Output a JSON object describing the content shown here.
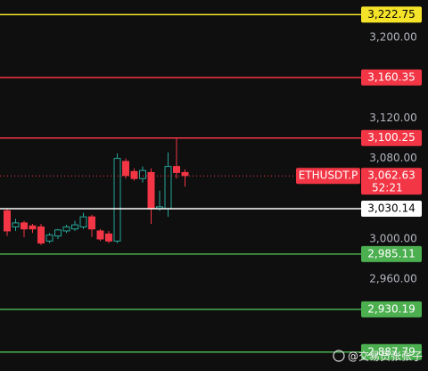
{
  "chart_data": {
    "type": "candlestick",
    "open": [
      3028,
      3012,
      3016,
      3013,
      3012,
      2998,
      3003,
      3008,
      3010,
      3012,
      3022,
      3008,
      3005,
      2998,
      3077,
      3067,
      3060,
      3066,
      3030,
      3030,
      3072,
      3066
    ],
    "high": [
      3030,
      3020,
      3018,
      3015,
      3015,
      3006,
      3010,
      3014,
      3018,
      3026,
      3024,
      3010,
      3008,
      3085,
      3080,
      3070,
      3072,
      3070,
      3048,
      3086,
      3100,
      3069
    ],
    "low": [
      3003,
      3008,
      3002,
      3006,
      2994,
      2996,
      3000,
      3006,
      3008,
      3010,
      3002,
      2998,
      2996,
      2996,
      3060,
      3058,
      3056,
      3015,
      3028,
      3022,
      3060,
      3052
    ],
    "close": [
      3008,
      3016,
      3010,
      3010,
      2996,
      3004,
      3009,
      3012,
      3014,
      3022,
      3010,
      3000,
      2998,
      3080,
      3063,
      3060,
      3068,
      3030,
      3032,
      3072,
      3066,
      3063
    ],
    "up_color": "#26a69a",
    "down_color": "#f23645",
    "ylim": [
      2869,
      3237.2
    ],
    "yticks": [
      {
        "value": 3200,
        "label": "3,200.00"
      },
      {
        "value": 3120,
        "label": "3,120.00"
      },
      {
        "value": 3080,
        "label": "3,080.00"
      },
      {
        "value": 3000,
        "label": "3,000.00"
      },
      {
        "value": 2960,
        "label": "2,960.00"
      }
    ],
    "levels": [
      {
        "value": 3222.75,
        "label": "3,222.75",
        "color": "#f5e32a",
        "text_color": "#000000"
      },
      {
        "value": 3160.35,
        "label": "3,160.35",
        "color": "#f23645",
        "text_color": "#ffffff"
      },
      {
        "value": 3100.25,
        "label": "3,100.25",
        "color": "#f23645",
        "text_color": "#ffffff"
      },
      {
        "value": 3030.14,
        "label": "3,030.14",
        "color": "#ffffff",
        "text_color": "#000000"
      },
      {
        "value": 2985.11,
        "label": "2,985.11",
        "color": "#4caf50",
        "text_color": "#ffffff"
      },
      {
        "value": 2930.19,
        "label": "2,930.19",
        "color": "#4caf50",
        "text_color": "#ffffff"
      },
      {
        "value": 2887.79,
        "label": "2,887.79",
        "color": "#4caf50",
        "text_color": "#ffffff"
      }
    ],
    "price": {
      "name": "ETHUSDT.P",
      "value": 3062.63,
      "label": "3,062.63",
      "countdown": "52:21",
      "color": "#f23645"
    },
    "watermark": "@交易员张张子"
  }
}
